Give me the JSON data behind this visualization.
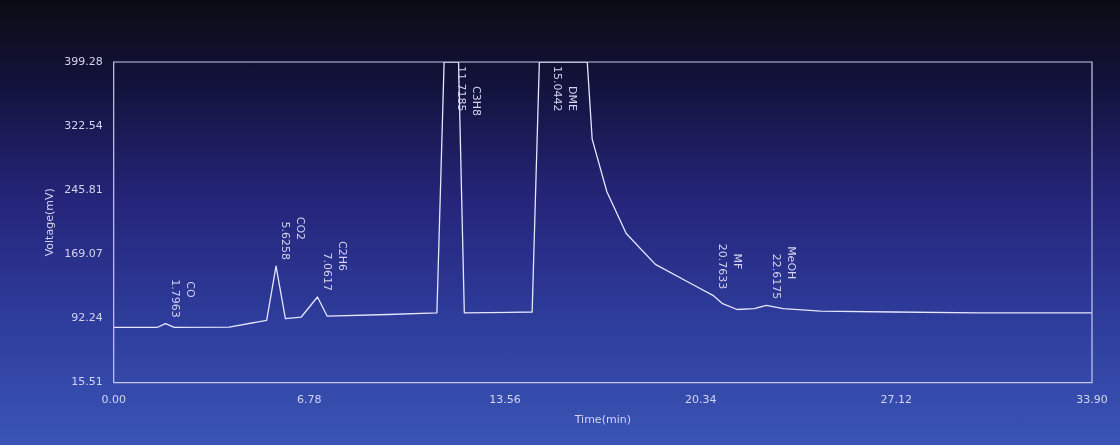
{
  "chart_data": {
    "type": "line",
    "ylabel": "Voltage(mV)",
    "xlabel": "Time(min)",
    "xlim": [
      0,
      33.9
    ],
    "xticks": [
      {
        "value": 0,
        "label": "0.00"
      },
      6.78,
      13.56,
      20.34,
      27.12,
      {
        "value": 33.9,
        "label": "33.90"
      }
    ],
    "ylim": [
      15.51,
      399.28
    ],
    "yticks": [
      15.51,
      92.24,
      169.07,
      245.81,
      322.54,
      399.28
    ],
    "grid": false,
    "legend": false,
    "marker": "none",
    "line_style": "solid",
    "series": [
      {
        "color": "#e6e6ff",
        "x": [
          0,
          1.5,
          1.7963,
          2.1,
          4,
          5.3,
          5.6258,
          5.95,
          6.5,
          7.0617,
          7.4,
          9.5,
          11.2,
          11.45,
          11.7185,
          11.95,
          12.15,
          14.5,
          14.75,
          15.0442,
          16.41,
          16.58,
          17.09,
          17.76,
          18.77,
          20.11,
          20.7633,
          21.1,
          21.6,
          22.2,
          22.6175,
          23.2,
          24.5,
          27,
          30,
          33.5,
          33.9
        ],
        "values": [
          81.5,
          81.5,
          86,
          81.5,
          82,
          90,
          155,
          92,
          94,
          118,
          95,
          97,
          99,
          399.28,
          399.28,
          399.28,
          99,
          100,
          399.28,
          399.28,
          399.28,
          307,
          244,
          194,
          157,
          132,
          120,
          110,
          103,
          104,
          108,
          104,
          101,
          100,
          99,
          99,
          99
        ]
      }
    ],
    "annotations": [
      {
        "text": "1.7963",
        "x": 1.7963,
        "y": 86
      },
      {
        "text": "CO",
        "x": 1.7963,
        "y": 86
      },
      {
        "text": "5.6258",
        "x": 5.6258,
        "y": 155
      },
      {
        "text": "CO2",
        "x": 5.6258,
        "y": 155
      },
      {
        "text": "7.0617",
        "x": 7.0617,
        "y": 118
      },
      {
        "text": "C2H6",
        "x": 7.0617,
        "y": 118
      },
      {
        "text": "11.7185",
        "x": 11.7185,
        "y": 399.28
      },
      {
        "text": "C3H8",
        "x": 11.7185,
        "y": 399.28
      },
      {
        "text": "15.0442",
        "x": 15.0442,
        "y": 399.28
      },
      {
        "text": "DME",
        "x": 15.0442,
        "y": 399.28
      },
      {
        "text": "20.7633",
        "x": 20.7633,
        "y": 120
      },
      {
        "text": "MF",
        "x": 20.7633,
        "y": 120
      },
      {
        "text": "22.6175",
        "x": 22.6175,
        "y": 108
      },
      {
        "text": "MeOH",
        "x": 22.6175,
        "y": 108
      }
    ]
  }
}
